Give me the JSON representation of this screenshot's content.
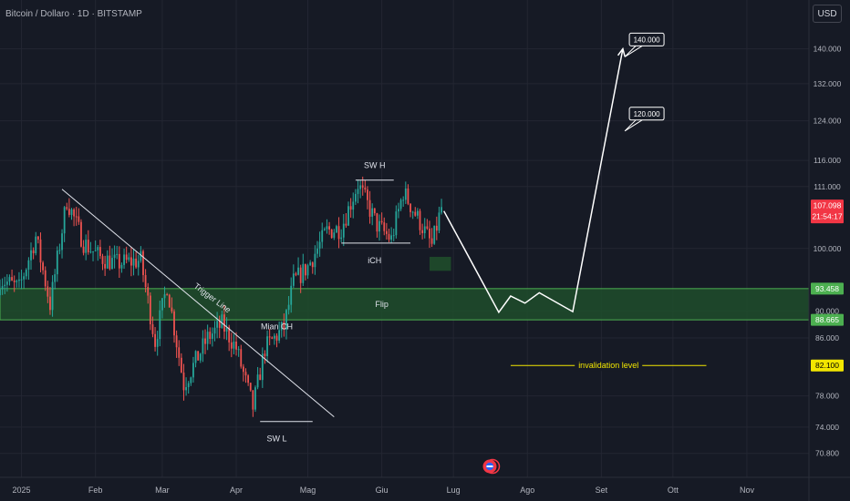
{
  "header": {
    "symbol": "Bitcoin / Dollaro · 1D · BITSTAMP"
  },
  "toolbar": {
    "currency_label": "USD"
  },
  "colors": {
    "background": "#161a25",
    "grid": "#232632",
    "candle_up": "#26a69a",
    "candle_down": "#ef5350",
    "zone_fill": "#1f4d2b",
    "zone_border": "#4caf50",
    "invalidation": "#f2e600",
    "price_tag": "#f23645",
    "text": "#b2b5be"
  },
  "chart_data": {
    "type": "candlestick",
    "symbol": "Bitcoin / Dollaro",
    "interval": "1D",
    "exchange": "BITSTAMP",
    "scale": "log",
    "ylim": [
      68000,
      152000
    ],
    "y_ticks": [
      {
        "value": 140000,
        "label": "140.000"
      },
      {
        "value": 132000,
        "label": "132.000"
      },
      {
        "value": 124000,
        "label": "124.000"
      },
      {
        "value": 116000,
        "label": "116.000"
      },
      {
        "value": 111000,
        "label": "111.000"
      },
      {
        "value": 100000,
        "label": "100.000"
      },
      {
        "value": 90000,
        "label": "90.000"
      },
      {
        "value": 86000,
        "label": "86.000"
      },
      {
        "value": 78000,
        "label": "78.000"
      },
      {
        "value": 74000,
        "label": "74.000"
      },
      {
        "value": 70800,
        "label": "70.800"
      }
    ],
    "x_range": [
      "2024-12-23",
      "2025-11-27"
    ],
    "x_ticks": [
      {
        "date": "2025-01-01",
        "label": "2025"
      },
      {
        "date": "2025-02-01",
        "label": "Feb"
      },
      {
        "date": "2025-03-01",
        "label": "Mar"
      },
      {
        "date": "2025-04-01",
        "label": "Apr"
      },
      {
        "date": "2025-05-01",
        "label": "Mag"
      },
      {
        "date": "2025-06-01",
        "label": "Giu"
      },
      {
        "date": "2025-07-01",
        "label": "Lug"
      },
      {
        "date": "2025-08-01",
        "label": "Ago"
      },
      {
        "date": "2025-09-01",
        "label": "Set"
      },
      {
        "date": "2025-10-01",
        "label": "Ott"
      },
      {
        "date": "2025-11-01",
        "label": "Nov"
      }
    ],
    "price_path": [
      {
        "date": "2024-12-23",
        "price": 95000
      },
      {
        "date": "2024-12-31",
        "price": 93500
      },
      {
        "date": "2025-01-07",
        "price": 102000
      },
      {
        "date": "2025-01-13",
        "price": 91000
      },
      {
        "date": "2025-01-20",
        "price": 108500
      },
      {
        "date": "2025-01-27",
        "price": 101000
      },
      {
        "date": "2025-02-03",
        "price": 98500
      },
      {
        "date": "2025-02-10",
        "price": 97500
      },
      {
        "date": "2025-02-20",
        "price": 98000
      },
      {
        "date": "2025-02-26",
        "price": 85500
      },
      {
        "date": "2025-03-03",
        "price": 94000
      },
      {
        "date": "2025-03-10",
        "price": 79500
      },
      {
        "date": "2025-03-20",
        "price": 86000
      },
      {
        "date": "2025-03-26",
        "price": 88000
      },
      {
        "date": "2025-04-01",
        "price": 84500
      },
      {
        "date": "2025-04-08",
        "price": 76500
      },
      {
        "date": "2025-04-13",
        "price": 84500
      },
      {
        "date": "2025-04-21",
        "price": 87500
      },
      {
        "date": "2025-04-25",
        "price": 94500
      },
      {
        "date": "2025-05-01",
        "price": 97000
      },
      {
        "date": "2025-05-09",
        "price": 103000
      },
      {
        "date": "2025-05-15",
        "price": 103500
      },
      {
        "date": "2025-05-22",
        "price": 111500
      },
      {
        "date": "2025-05-30",
        "price": 104000
      },
      {
        "date": "2025-06-05",
        "price": 101500
      },
      {
        "date": "2025-06-10",
        "price": 110000
      },
      {
        "date": "2025-06-17",
        "price": 104500
      },
      {
        "date": "2025-06-22",
        "price": 100500
      },
      {
        "date": "2025-06-26",
        "price": 107098
      }
    ],
    "projection_path": [
      {
        "date": "2025-06-27",
        "price": 106500
      },
      {
        "date": "2025-07-20",
        "price": 89800
      },
      {
        "date": "2025-07-25",
        "price": 92300
      },
      {
        "date": "2025-07-31",
        "price": 91200
      },
      {
        "date": "2025-08-06",
        "price": 92800
      },
      {
        "date": "2025-08-20",
        "price": 89900
      },
      {
        "date": "2025-09-10",
        "price": 140000
      }
    ],
    "zones": [
      {
        "name": "Flip",
        "date_from": "2024-12-23",
        "date_to": "2025-11-27",
        "price_from": 88665,
        "price_to": 93458
      },
      {
        "name": "order-block",
        "date_from": "2025-06-21",
        "date_to": "2025-06-30",
        "price_from": 96300,
        "price_to": 98600
      }
    ],
    "lines": {
      "trigger_line": {
        "from_date": "2025-01-18",
        "from_price": 110500,
        "to_date": "2025-05-12",
        "to_price": 75300
      },
      "invalidation": {
        "from_date": "2025-07-25",
        "to_date": "2025-10-15",
        "price": 82100
      }
    },
    "annotations": [
      {
        "text": "Trigger Line",
        "date": "2025-03-22",
        "price": 92000
      },
      {
        "text": "Mian CH",
        "date": "2025-04-18",
        "price": 87700
      },
      {
        "text": "SW H",
        "date": "2025-05-29",
        "price": 115000
      },
      {
        "text": "iCH",
        "date": "2025-05-29",
        "price": 98000
      },
      {
        "text": "SW L",
        "date": "2025-04-18",
        "price": 72600
      },
      {
        "text": "Flip",
        "date": "2025-06-01",
        "price": 91000
      },
      {
        "text": "invalidation level",
        "date": "2025-09-04",
        "price": 82100
      }
    ],
    "callouts": [
      {
        "text": "140.000",
        "date": "2025-09-20",
        "price": 142200
      },
      {
        "text": "120.000",
        "date": "2025-09-20",
        "price": 125500
      }
    ],
    "price_labels": [
      {
        "price": 107098,
        "value": "107.098",
        "countdown": "21:54:17",
        "color": "#f23645"
      },
      {
        "price": 93458,
        "value": "93.458",
        "color": "#4caf50"
      },
      {
        "price": 88665,
        "value": "88.665",
        "color": "#4caf50"
      },
      {
        "price": 82100,
        "value": "82.100",
        "color": "#f2e600"
      }
    ],
    "grid": true,
    "legend": "none"
  }
}
